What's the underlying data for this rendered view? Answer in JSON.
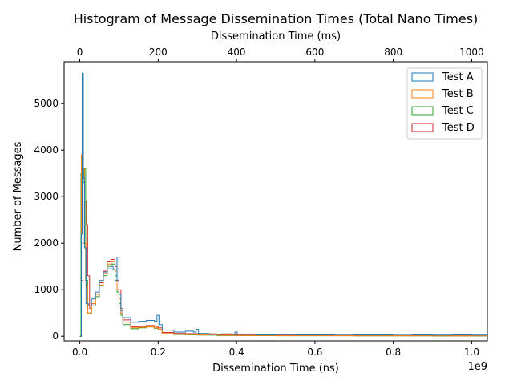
{
  "chart_data": {
    "type": "histogram",
    "title": "Histogram of Message Dissemination Times (Total Nano Times)",
    "xlabel": "Dissemination Time (ns)",
    "x_offset_label": "1e9",
    "ylabel": "Number of Messages",
    "top_xlabel": "Dissemination Time (ms)",
    "xlim": [
      -0.04,
      1.04
    ],
    "ylim": [
      -100,
      5900
    ],
    "x_ticks": [
      0.0,
      0.2,
      0.4,
      0.6,
      0.8,
      1.0
    ],
    "x_tick_labels": [
      "0.0",
      "0.2",
      "0.4",
      "0.6",
      "0.8",
      "1.0"
    ],
    "y_ticks": [
      0,
      1000,
      2000,
      3000,
      4000,
      5000
    ],
    "y_tick_labels": [
      "0",
      "1000",
      "2000",
      "3000",
      "4000",
      "5000"
    ],
    "top_ticks": [
      0,
      200,
      400,
      600,
      800,
      1000
    ],
    "top_tick_labels": [
      "0",
      "200",
      "400",
      "600",
      "800",
      "1000"
    ],
    "legend_position": "top-right",
    "series": [
      {
        "name": "Test A",
        "color": "#1f77b4",
        "points": [
          [
            0.0,
            0
          ],
          [
            0.004,
            2200
          ],
          [
            0.006,
            5650
          ],
          [
            0.009,
            3400
          ],
          [
            0.012,
            1900
          ],
          [
            0.016,
            700
          ],
          [
            0.022,
            650
          ],
          [
            0.03,
            800
          ],
          [
            0.04,
            950
          ],
          [
            0.05,
            1200
          ],
          [
            0.06,
            1380
          ],
          [
            0.07,
            1450
          ],
          [
            0.08,
            1500
          ],
          [
            0.085,
            1430
          ],
          [
            0.09,
            1200
          ],
          [
            0.095,
            1700
          ],
          [
            0.1,
            900
          ],
          [
            0.105,
            550
          ],
          [
            0.11,
            400
          ],
          [
            0.13,
            300
          ],
          [
            0.15,
            320
          ],
          [
            0.17,
            340
          ],
          [
            0.19,
            320
          ],
          [
            0.197,
            450
          ],
          [
            0.202,
            250
          ],
          [
            0.21,
            130
          ],
          [
            0.24,
            90
          ],
          [
            0.27,
            110
          ],
          [
            0.29,
            90
          ],
          [
            0.297,
            150
          ],
          [
            0.303,
            60
          ],
          [
            0.33,
            40
          ],
          [
            0.36,
            50
          ],
          [
            0.39,
            40
          ],
          [
            0.396,
            90
          ],
          [
            0.402,
            40
          ],
          [
            0.45,
            30
          ],
          [
            0.5,
            35
          ],
          [
            0.55,
            30
          ],
          [
            0.6,
            30
          ],
          [
            0.65,
            35
          ],
          [
            0.7,
            30
          ],
          [
            0.75,
            30
          ],
          [
            0.8,
            35
          ],
          [
            0.85,
            30
          ],
          [
            0.9,
            25
          ],
          [
            0.95,
            30
          ],
          [
            1.0,
            25
          ],
          [
            1.04,
            25
          ]
        ]
      },
      {
        "name": "Test B",
        "color": "#ff7f0e",
        "points": [
          [
            0.0,
            0
          ],
          [
            0.004,
            3900
          ],
          [
            0.008,
            3600
          ],
          [
            0.012,
            2000
          ],
          [
            0.016,
            1100
          ],
          [
            0.02,
            500
          ],
          [
            0.03,
            700
          ],
          [
            0.04,
            900
          ],
          [
            0.05,
            1100
          ],
          [
            0.06,
            1350
          ],
          [
            0.07,
            1550
          ],
          [
            0.08,
            1600
          ],
          [
            0.09,
            1400
          ],
          [
            0.095,
            1000
          ],
          [
            0.1,
            800
          ],
          [
            0.105,
            500
          ],
          [
            0.11,
            300
          ],
          [
            0.13,
            180
          ],
          [
            0.15,
            190
          ],
          [
            0.17,
            200
          ],
          [
            0.19,
            180
          ],
          [
            0.2,
            150
          ],
          [
            0.21,
            60
          ],
          [
            0.24,
            40
          ],
          [
            0.27,
            35
          ],
          [
            0.3,
            30
          ],
          [
            0.35,
            20
          ],
          [
            0.4,
            15
          ],
          [
            0.5,
            12
          ],
          [
            0.6,
            12
          ],
          [
            0.7,
            10
          ],
          [
            0.8,
            10
          ],
          [
            0.9,
            8
          ],
          [
            1.0,
            8
          ],
          [
            1.04,
            8
          ]
        ]
      },
      {
        "name": "Test C",
        "color": "#2ca02c",
        "points": [
          [
            0.0,
            0
          ],
          [
            0.003,
            3500
          ],
          [
            0.007,
            3300
          ],
          [
            0.011,
            3600
          ],
          [
            0.015,
            1200
          ],
          [
            0.02,
            500
          ],
          [
            0.03,
            650
          ],
          [
            0.04,
            850
          ],
          [
            0.05,
            1100
          ],
          [
            0.06,
            1300
          ],
          [
            0.07,
            1500
          ],
          [
            0.08,
            1550
          ],
          [
            0.09,
            1300
          ],
          [
            0.095,
            950
          ],
          [
            0.1,
            700
          ],
          [
            0.105,
            450
          ],
          [
            0.11,
            250
          ],
          [
            0.13,
            160
          ],
          [
            0.15,
            180
          ],
          [
            0.17,
            200
          ],
          [
            0.19,
            170
          ],
          [
            0.2,
            140
          ],
          [
            0.21,
            50
          ],
          [
            0.24,
            35
          ],
          [
            0.27,
            30
          ],
          [
            0.3,
            25
          ],
          [
            0.35,
            15
          ],
          [
            0.4,
            12
          ],
          [
            0.5,
            10
          ],
          [
            0.6,
            10
          ],
          [
            0.7,
            8
          ],
          [
            0.8,
            8
          ],
          [
            0.9,
            6
          ],
          [
            1.0,
            6
          ],
          [
            1.04,
            6
          ]
        ]
      },
      {
        "name": "Test D",
        "color": "#d62728",
        "points": [
          [
            0.0,
            0
          ],
          [
            0.004,
            1200
          ],
          [
            0.008,
            2000
          ],
          [
            0.012,
            2900
          ],
          [
            0.016,
            2400
          ],
          [
            0.02,
            1300
          ],
          [
            0.025,
            600
          ],
          [
            0.03,
            700
          ],
          [
            0.04,
            900
          ],
          [
            0.05,
            1150
          ],
          [
            0.06,
            1400
          ],
          [
            0.07,
            1600
          ],
          [
            0.08,
            1650
          ],
          [
            0.09,
            1500
          ],
          [
            0.095,
            1200
          ],
          [
            0.1,
            1000
          ],
          [
            0.105,
            600
          ],
          [
            0.11,
            350
          ],
          [
            0.13,
            200
          ],
          [
            0.15,
            210
          ],
          [
            0.17,
            230
          ],
          [
            0.19,
            210
          ],
          [
            0.2,
            180
          ],
          [
            0.21,
            80
          ],
          [
            0.24,
            60
          ],
          [
            0.27,
            55
          ],
          [
            0.3,
            50
          ],
          [
            0.35,
            30
          ],
          [
            0.4,
            20
          ],
          [
            0.5,
            18
          ],
          [
            0.6,
            15
          ],
          [
            0.7,
            12
          ],
          [
            0.8,
            12
          ],
          [
            0.9,
            10
          ],
          [
            1.0,
            10
          ],
          [
            1.04,
            10
          ]
        ]
      }
    ]
  }
}
